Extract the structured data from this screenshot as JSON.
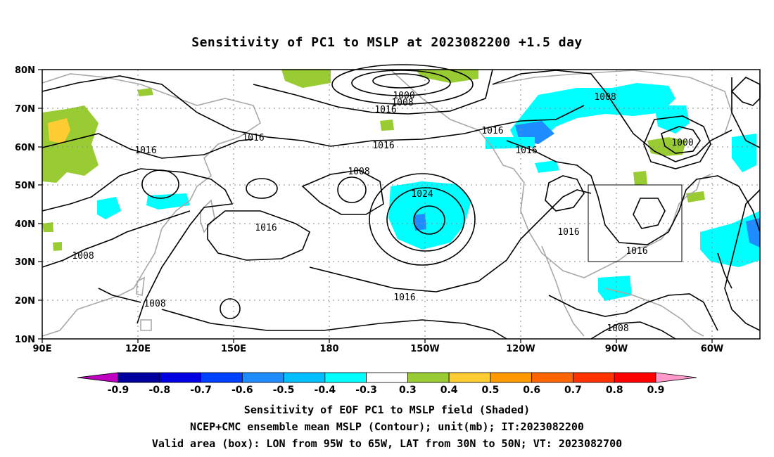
{
  "title": "Sensitivity of PC1 to MSLP at 2023082200 +1.5 day",
  "map": {
    "lon_labels": [
      "90E",
      "120E",
      "150E",
      "180",
      "150W",
      "120W",
      "90W",
      "60W"
    ],
    "lat_labels": [
      "80N",
      "70N",
      "60N",
      "50N",
      "40N",
      "30N",
      "20N",
      "10N"
    ],
    "valid_box": {
      "lon_from": "95W",
      "lon_to": "65W",
      "lat_from": "30N",
      "lat_to": "50N"
    },
    "contour_labels": [
      "1000",
      "1008",
      "1016",
      "1016",
      "1016",
      "1016",
      "1016",
      "1008",
      "1016",
      "1024",
      "1016",
      "1016",
      "1008",
      "1000",
      "1016",
      "1008",
      "1016",
      "1008",
      "1008",
      "1016"
    ],
    "colors": {
      "land": "#a8a8a8",
      "contour": "#000000",
      "box": "#000000"
    }
  },
  "colorbar": {
    "labels": [
      "-0.9",
      "-0.8",
      "-0.7",
      "-0.6",
      "-0.5",
      "-0.4",
      "-0.3",
      "0.3",
      "0.4",
      "0.5",
      "0.6",
      "0.7",
      "0.8",
      "0.9"
    ],
    "colors": [
      "#c000c0",
      "#0000a0",
      "#0000e0",
      "#0040ff",
      "#1e8cff",
      "#00bfff",
      "#00ffff",
      "#ffffff",
      "#99cc33",
      "#ffcc33",
      "#ff9900",
      "#ff6600",
      "#ff3300",
      "#ff0000",
      "#ff99cc"
    ]
  },
  "captions": [
    "Sensitivity of EOF PC1 to MSLP field (Shaded)",
    "NCEP+CMC ensemble mean MSLP (Contour); unit(mb); IT:2023082200",
    "Valid area (box): LON from 95W to 65W, LAT from 30N to 50N; VT: 2023082700"
  ]
}
